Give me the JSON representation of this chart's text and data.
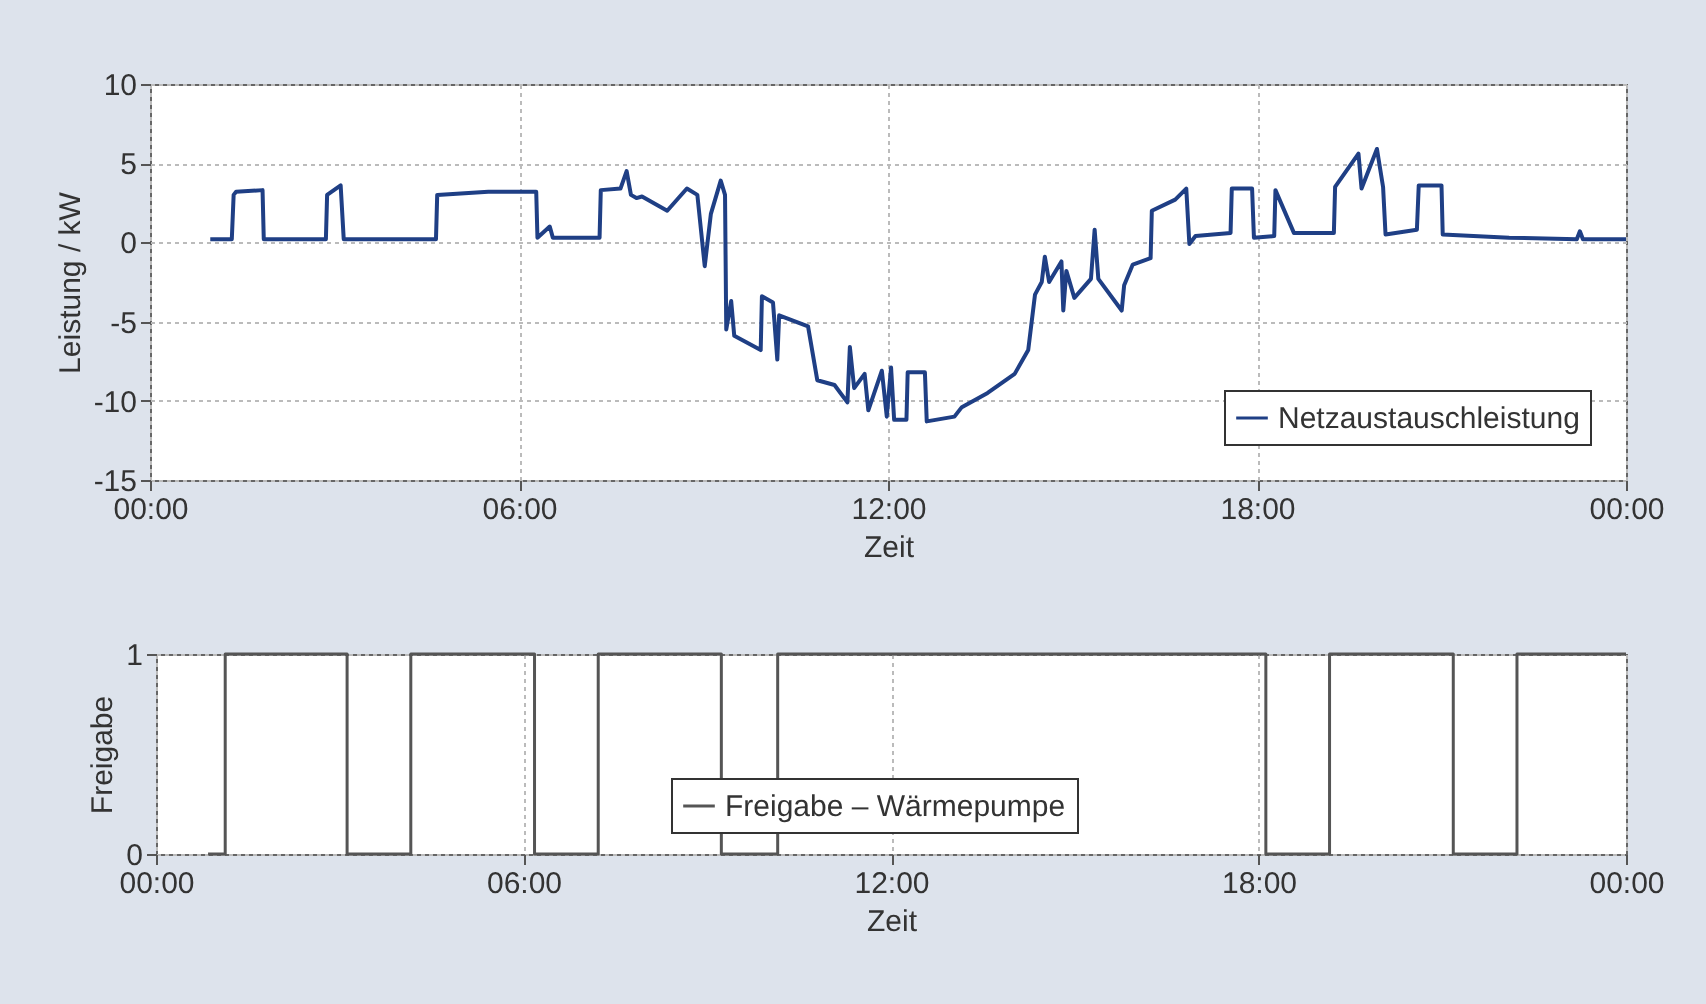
{
  "chart_data": [
    {
      "type": "line",
      "xlabel": "Zeit",
      "ylabel": "Leistung / kW",
      "xlim": [
        0,
        24
      ],
      "ylim": [
        -15,
        10
      ],
      "xticks": [
        {
          "value": 0,
          "label": "00:00"
        },
        {
          "value": 6,
          "label": "06:00"
        },
        {
          "value": 12,
          "label": "12:00"
        },
        {
          "value": 18,
          "label": "18:00"
        },
        {
          "value": 24,
          "label": "00:00"
        }
      ],
      "yticks": [
        -15,
        -10,
        -5,
        0,
        5,
        10
      ],
      "grid": true,
      "legend": "bottom right",
      "marker": "none",
      "line_style": "solid",
      "series": [
        {
          "name": "Netzaustauschleistung",
          "color": "#1f3f85",
          "x": [
            0.98,
            1.33,
            1.36,
            1.4,
            1.83,
            1.85,
            2.86,
            2.88,
            3.1,
            3.15,
            4.0,
            4.65,
            4.67,
            5.5,
            6.28,
            6.3,
            6.5,
            6.55,
            7.31,
            7.33,
            7.65,
            7.75,
            7.82,
            7.91,
            8.0,
            8.41,
            8.73,
            8.9,
            9.02,
            9.12,
            9.28,
            9.35,
            9.37,
            9.45,
            9.5,
            9.93,
            9.95,
            10.13,
            10.2,
            10.23,
            10.7,
            10.85,
            11.13,
            11.34,
            11.38,
            11.45,
            11.62,
            11.68,
            11.9,
            11.98,
            12.05,
            12.1,
            12.3,
            12.32,
            12.6,
            12.63,
            13.08,
            13.2,
            13.62,
            14.06,
            14.28,
            14.39,
            14.5,
            14.55,
            14.62,
            14.82,
            14.85,
            14.9,
            15.03,
            15.3,
            15.36,
            15.42,
            15.8,
            15.84,
            15.98,
            16.27,
            16.29,
            16.67,
            16.85,
            16.9,
            17.0,
            17.57,
            17.59,
            17.92,
            17.95,
            18.28,
            18.3,
            18.4,
            18.5,
            18.6,
            19.25,
            19.27,
            19.65,
            19.7,
            19.95,
            20.05,
            20.09,
            20.6,
            20.63,
            21.0,
            21.02,
            22.1,
            23.2,
            23.25,
            23.3,
            24
          ],
          "values": [
            0.2,
            0.2,
            3.0,
            3.2,
            3.3,
            0.2,
            0.2,
            3.0,
            3.6,
            0.2,
            0.2,
            0.2,
            3.0,
            3.2,
            3.2,
            0.3,
            1.0,
            0.3,
            0.3,
            3.3,
            3.4,
            4.5,
            3.0,
            2.8,
            2.9,
            2.0,
            3.4,
            3.0,
            -1.5,
            1.8,
            3.9,
            3.0,
            -5.5,
            -3.7,
            -5.9,
            -6.8,
            -3.4,
            -3.8,
            -7.4,
            -4.6,
            -5.3,
            -8.7,
            -9.0,
            -10.1,
            -6.6,
            -9.2,
            -8.3,
            -10.6,
            -8.1,
            -11.0,
            -7.9,
            -11.2,
            -11.2,
            -8.2,
            -8.2,
            -11.3,
            -11.0,
            -10.4,
            -9.5,
            -8.3,
            -6.8,
            -3.3,
            -2.5,
            -0.9,
            -2.5,
            -1.2,
            -4.3,
            -1.8,
            -3.5,
            -2.3,
            0.8,
            -2.3,
            -4.3,
            -2.7,
            -1.4,
            -1.0,
            2.0,
            2.7,
            3.4,
            -0.1,
            0.4,
            0.6,
            3.4,
            3.4,
            0.3,
            0.4,
            3.3,
            2.4,
            1.5,
            0.6,
            0.6,
            3.5,
            5.6,
            3.4,
            5.9,
            3.5,
            0.5,
            0.8,
            3.6,
            3.6,
            0.5,
            0.3,
            0.2,
            0.7,
            0.2,
            0.2
          ]
        }
      ]
    },
    {
      "type": "step",
      "xlabel": "Zeit",
      "ylabel": "Freigabe",
      "xlim": [
        0,
        24
      ],
      "ylim": [
        0,
        1
      ],
      "xticks": [
        {
          "value": 0,
          "label": "00:00"
        },
        {
          "value": 6,
          "label": "06:00"
        },
        {
          "value": 12,
          "label": "12:00"
        },
        {
          "value": 18,
          "label": "18:00"
        },
        {
          "value": 24,
          "label": "00:00"
        }
      ],
      "yticks": [
        0,
        1
      ],
      "grid": true,
      "legend": "bottom",
      "marker": "none",
      "line_style": "solid",
      "series": [
        {
          "name": "Freigabe – Wärmepumpe",
          "color": "#555555",
          "x": [
            0.85,
            1.13,
            3.12,
            4.16,
            6.18,
            7.22,
            9.23,
            10.15,
            18.12,
            19.16,
            21.18,
            22.22,
            24
          ],
          "values": [
            0,
            1,
            0,
            1,
            0,
            1,
            0,
            1,
            0,
            1,
            0,
            1,
            1
          ]
        }
      ]
    }
  ]
}
